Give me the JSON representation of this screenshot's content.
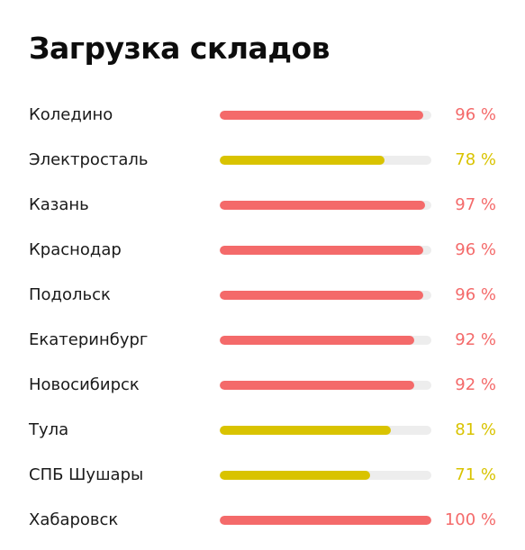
{
  "header": {
    "title": "Загрузка складов"
  },
  "colors": {
    "high": "#f46a6a",
    "medium": "#d9c300",
    "track": "#ededed"
  },
  "warehouses": [
    {
      "name": "Коледино",
      "percent": 96,
      "value_label": "96 %",
      "level": "high"
    },
    {
      "name": "Электросталь",
      "percent": 78,
      "value_label": "78 %",
      "level": "medium"
    },
    {
      "name": "Казань",
      "percent": 97,
      "value_label": "97 %",
      "level": "high"
    },
    {
      "name": "Краснодар",
      "percent": 96,
      "value_label": "96 %",
      "level": "high"
    },
    {
      "name": "Подольск",
      "percent": 96,
      "value_label": "96 %",
      "level": "high"
    },
    {
      "name": "Екатеринбург",
      "percent": 92,
      "value_label": "92 %",
      "level": "high"
    },
    {
      "name": "Новосибирск",
      "percent": 92,
      "value_label": "92 %",
      "level": "high"
    },
    {
      "name": "Тула",
      "percent": 81,
      "value_label": "81 %",
      "level": "medium"
    },
    {
      "name": "СПБ Шушары",
      "percent": 71,
      "value_label": "71 %",
      "level": "medium"
    },
    {
      "name": "Хабаровск",
      "percent": 100,
      "value_label": "100 %",
      "level": "high"
    }
  ]
}
